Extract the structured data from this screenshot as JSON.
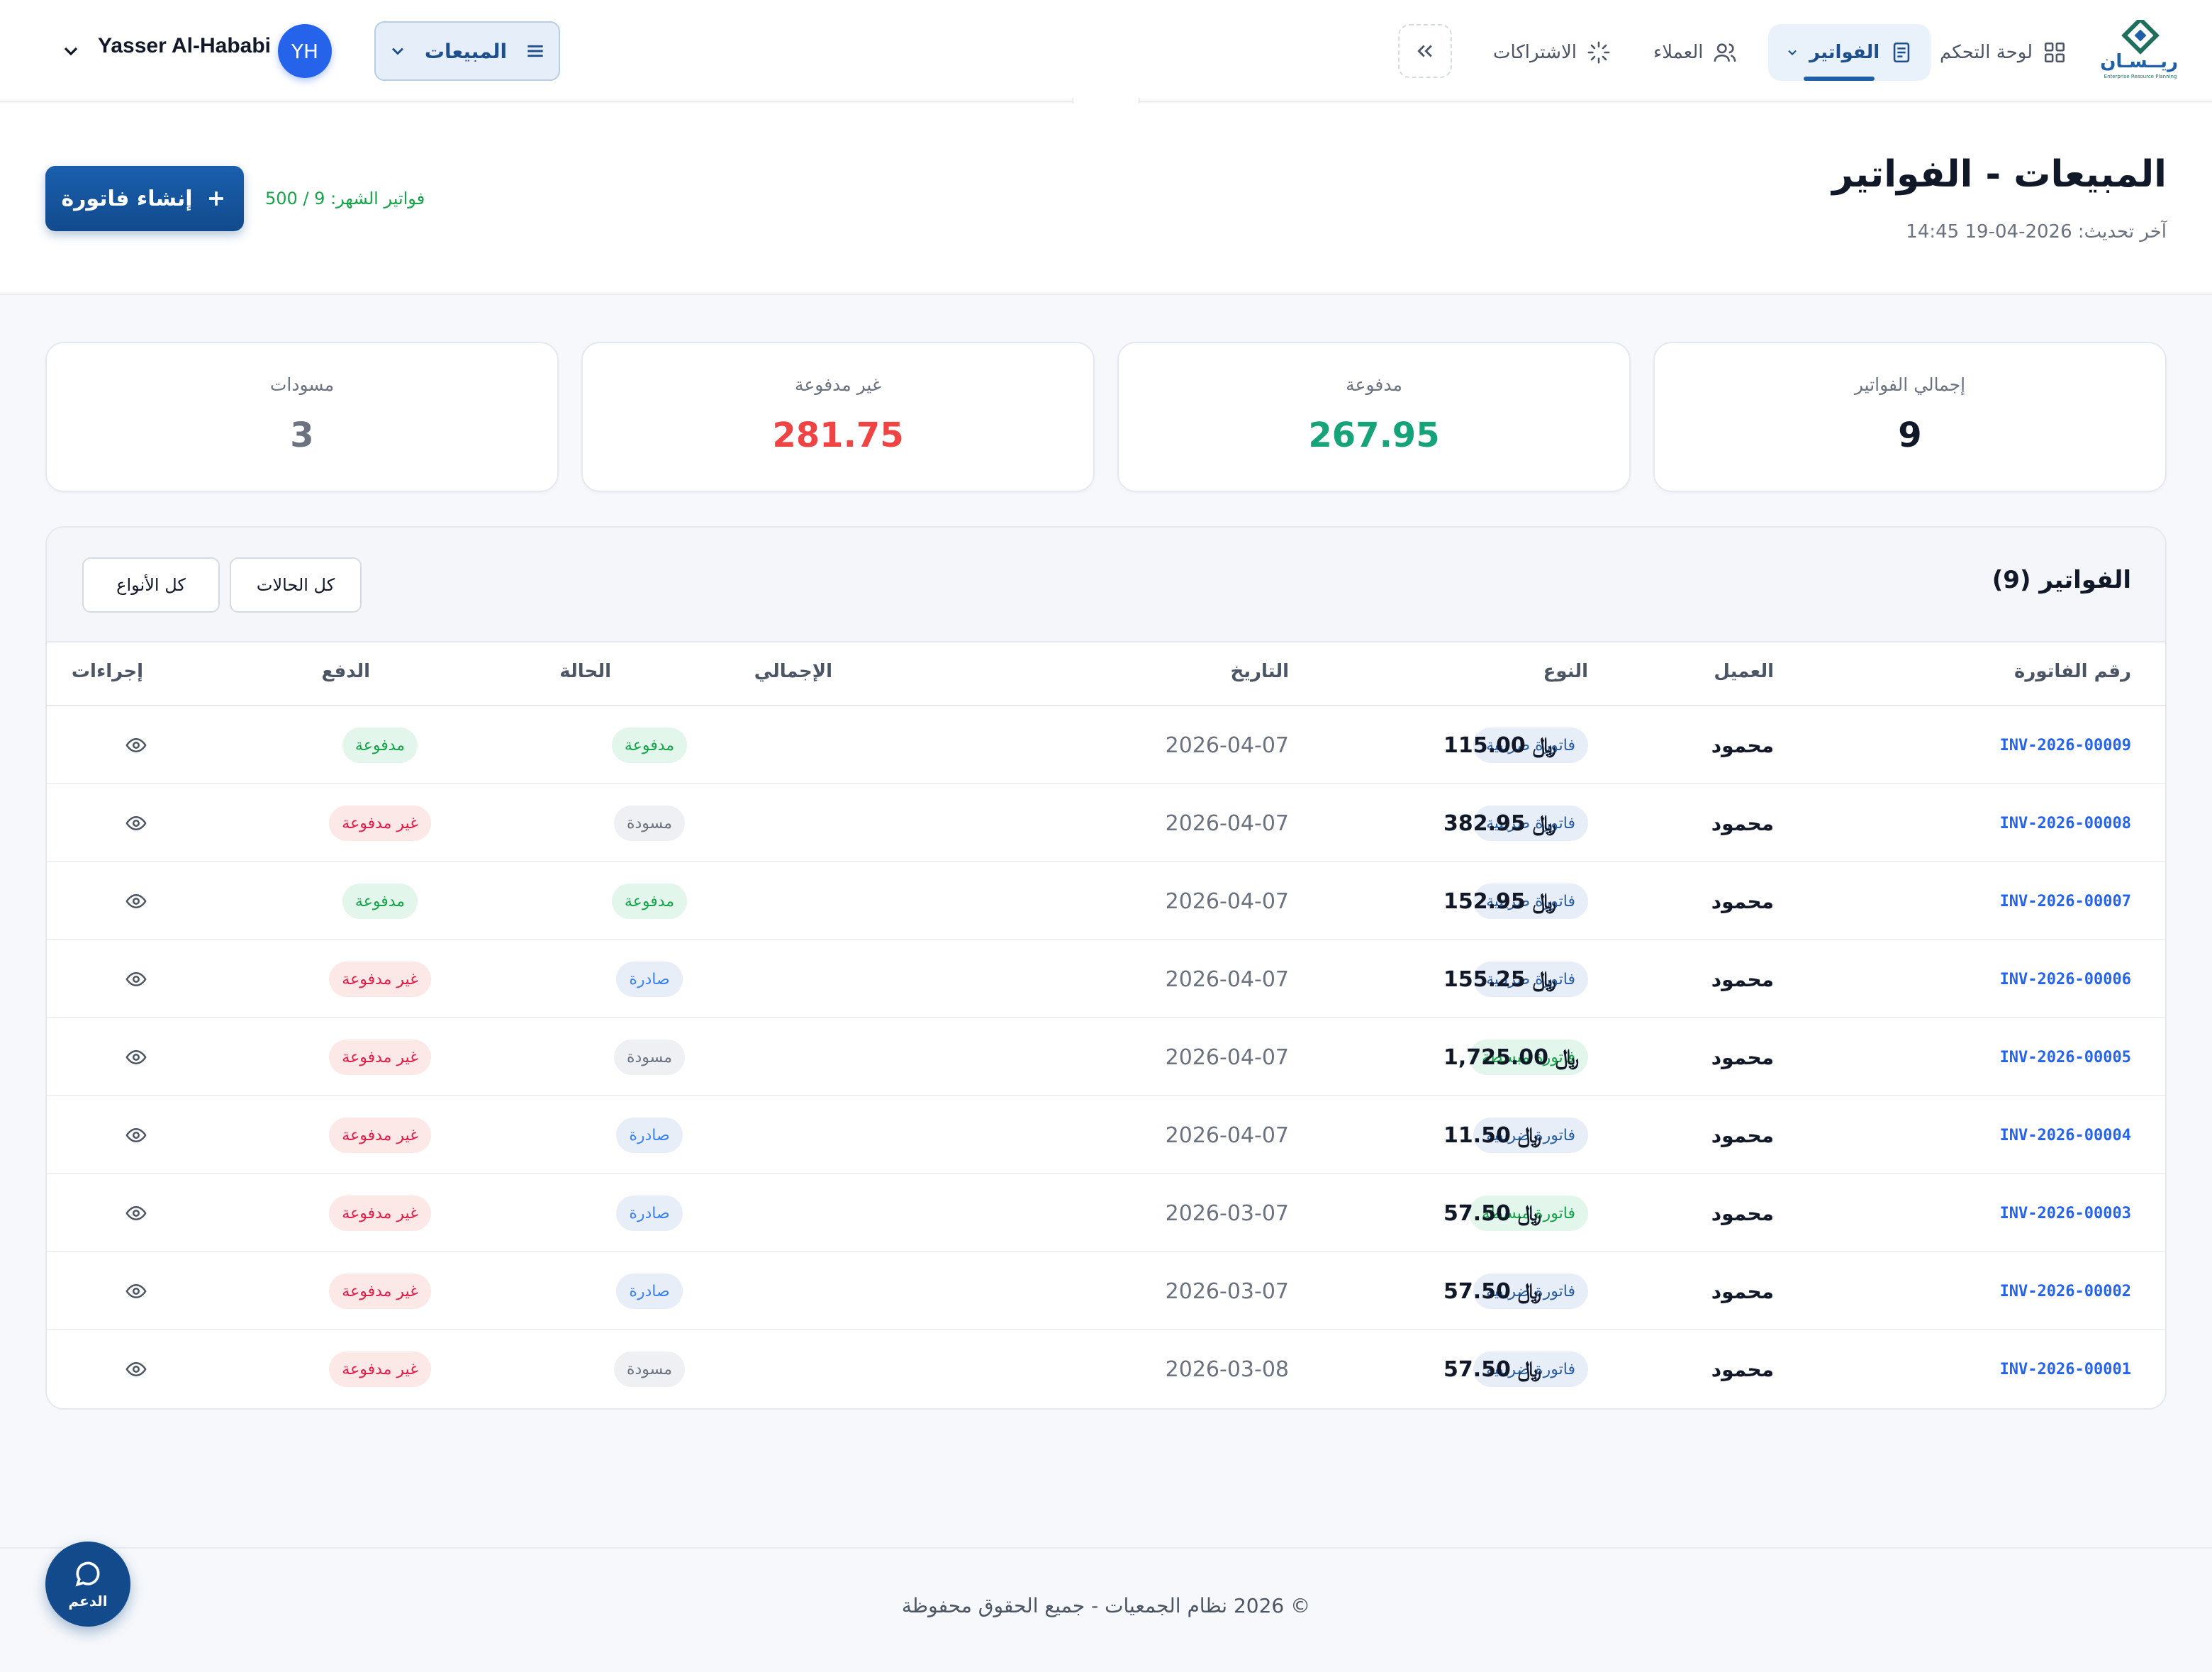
{
  "nav": {
    "brand": "ريــسـان",
    "brand_sub": "Enterprise Resource Planning",
    "items": [
      {
        "label": "لوحة التحكم",
        "icon": "grid-icon"
      },
      {
        "label": "الفواتير",
        "icon": "invoice-icon"
      },
      {
        "label": "العملاء",
        "icon": "users-icon"
      },
      {
        "label": "الاشتراكات",
        "icon": "loader-icon"
      }
    ],
    "module_label": "المبيعات",
    "user_initials": "YH",
    "user_name": "Yasser Al-Hababi"
  },
  "header": {
    "title": "المبيعات - الفواتير",
    "updated": "آخر تحديث: 2026-04-19 14:45",
    "create_label": "إنشاء فاتورة",
    "quota": "فواتير الشهر: 9 / 500"
  },
  "stats": [
    {
      "label": "إجمالي الفواتير",
      "value": "9",
      "color": "#111827"
    },
    {
      "label": "مدفوعة",
      "value": "267.95",
      "color": "#16a37a"
    },
    {
      "label": "غير مدفوعة",
      "value": "281.75",
      "color": "#ef4444"
    },
    {
      "label": "مسودات",
      "value": "3",
      "color": "#6b7280"
    }
  ],
  "table": {
    "title": "الفواتير (9)",
    "filter_status": "كل الحالات",
    "filter_type": "كل الأنواع",
    "columns": {
      "number": "رقم الفاتورة",
      "client": "العميل",
      "type": "النوع",
      "date": "التاريخ",
      "total": "الإجمالي",
      "status": "الحالة",
      "payment": "الدفع",
      "actions": "إجراءات"
    },
    "currency_symbol": "﷼",
    "rows": [
      {
        "number": "INV-2026-00009",
        "client": "محمود",
        "type": "فاتورة ضريبية",
        "type_kind": "tax",
        "date": "2026-04-07",
        "total": "115.00",
        "status": "مدفوعة",
        "status_kind": "paid",
        "payment": "مدفوعة",
        "payment_kind": "paid"
      },
      {
        "number": "INV-2026-00008",
        "client": "محمود",
        "type": "فاتورة ضريبية",
        "type_kind": "tax",
        "date": "2026-04-07",
        "total": "382.95",
        "status": "مسودة",
        "status_kind": "draft",
        "payment": "غير مدفوعة",
        "payment_kind": "unpaid"
      },
      {
        "number": "INV-2026-00007",
        "client": "محمود",
        "type": "فاتورة ضريبية",
        "type_kind": "tax",
        "date": "2026-04-07",
        "total": "152.95",
        "status": "مدفوعة",
        "status_kind": "paid",
        "payment": "مدفوعة",
        "payment_kind": "paid"
      },
      {
        "number": "INV-2026-00006",
        "client": "محمود",
        "type": "فاتورة ضريبية",
        "type_kind": "tax",
        "date": "2026-04-07",
        "total": "155.25",
        "status": "صادرة",
        "status_kind": "issued",
        "payment": "غير مدفوعة",
        "payment_kind": "unpaid"
      },
      {
        "number": "INV-2026-00005",
        "client": "محمود",
        "type": "فاتورة مبسطة",
        "type_kind": "simple",
        "date": "2026-04-07",
        "total": "1,725.00",
        "status": "مسودة",
        "status_kind": "draft",
        "payment": "غير مدفوعة",
        "payment_kind": "unpaid"
      },
      {
        "number": "INV-2026-00004",
        "client": "محمود",
        "type": "فاتورة ضريبية",
        "type_kind": "tax",
        "date": "2026-04-07",
        "total": "11.50",
        "status": "صادرة",
        "status_kind": "issued",
        "payment": "غير مدفوعة",
        "payment_kind": "unpaid"
      },
      {
        "number": "INV-2026-00003",
        "client": "محمود",
        "type": "فاتورة مبسطة",
        "type_kind": "simple",
        "date": "2026-03-07",
        "total": "57.50",
        "status": "صادرة",
        "status_kind": "issued",
        "payment": "غير مدفوعة",
        "payment_kind": "unpaid"
      },
      {
        "number": "INV-2026-00002",
        "client": "محمود",
        "type": "فاتورة ضريبية",
        "type_kind": "tax",
        "date": "2026-03-07",
        "total": "57.50",
        "status": "صادرة",
        "status_kind": "issued",
        "payment": "غير مدفوعة",
        "payment_kind": "unpaid"
      },
      {
        "number": "INV-2026-00001",
        "client": "محمود",
        "type": "فاتورة ضريبية",
        "type_kind": "tax",
        "date": "2026-03-08",
        "total": "57.50",
        "status": "مسودة",
        "status_kind": "draft",
        "payment": "غير مدفوعة",
        "payment_kind": "unpaid"
      }
    ]
  },
  "footer": {
    "text": "© 2026 نظام الجمعيات - جميع الحقوق محفوظة",
    "support_label": "الدعم"
  }
}
